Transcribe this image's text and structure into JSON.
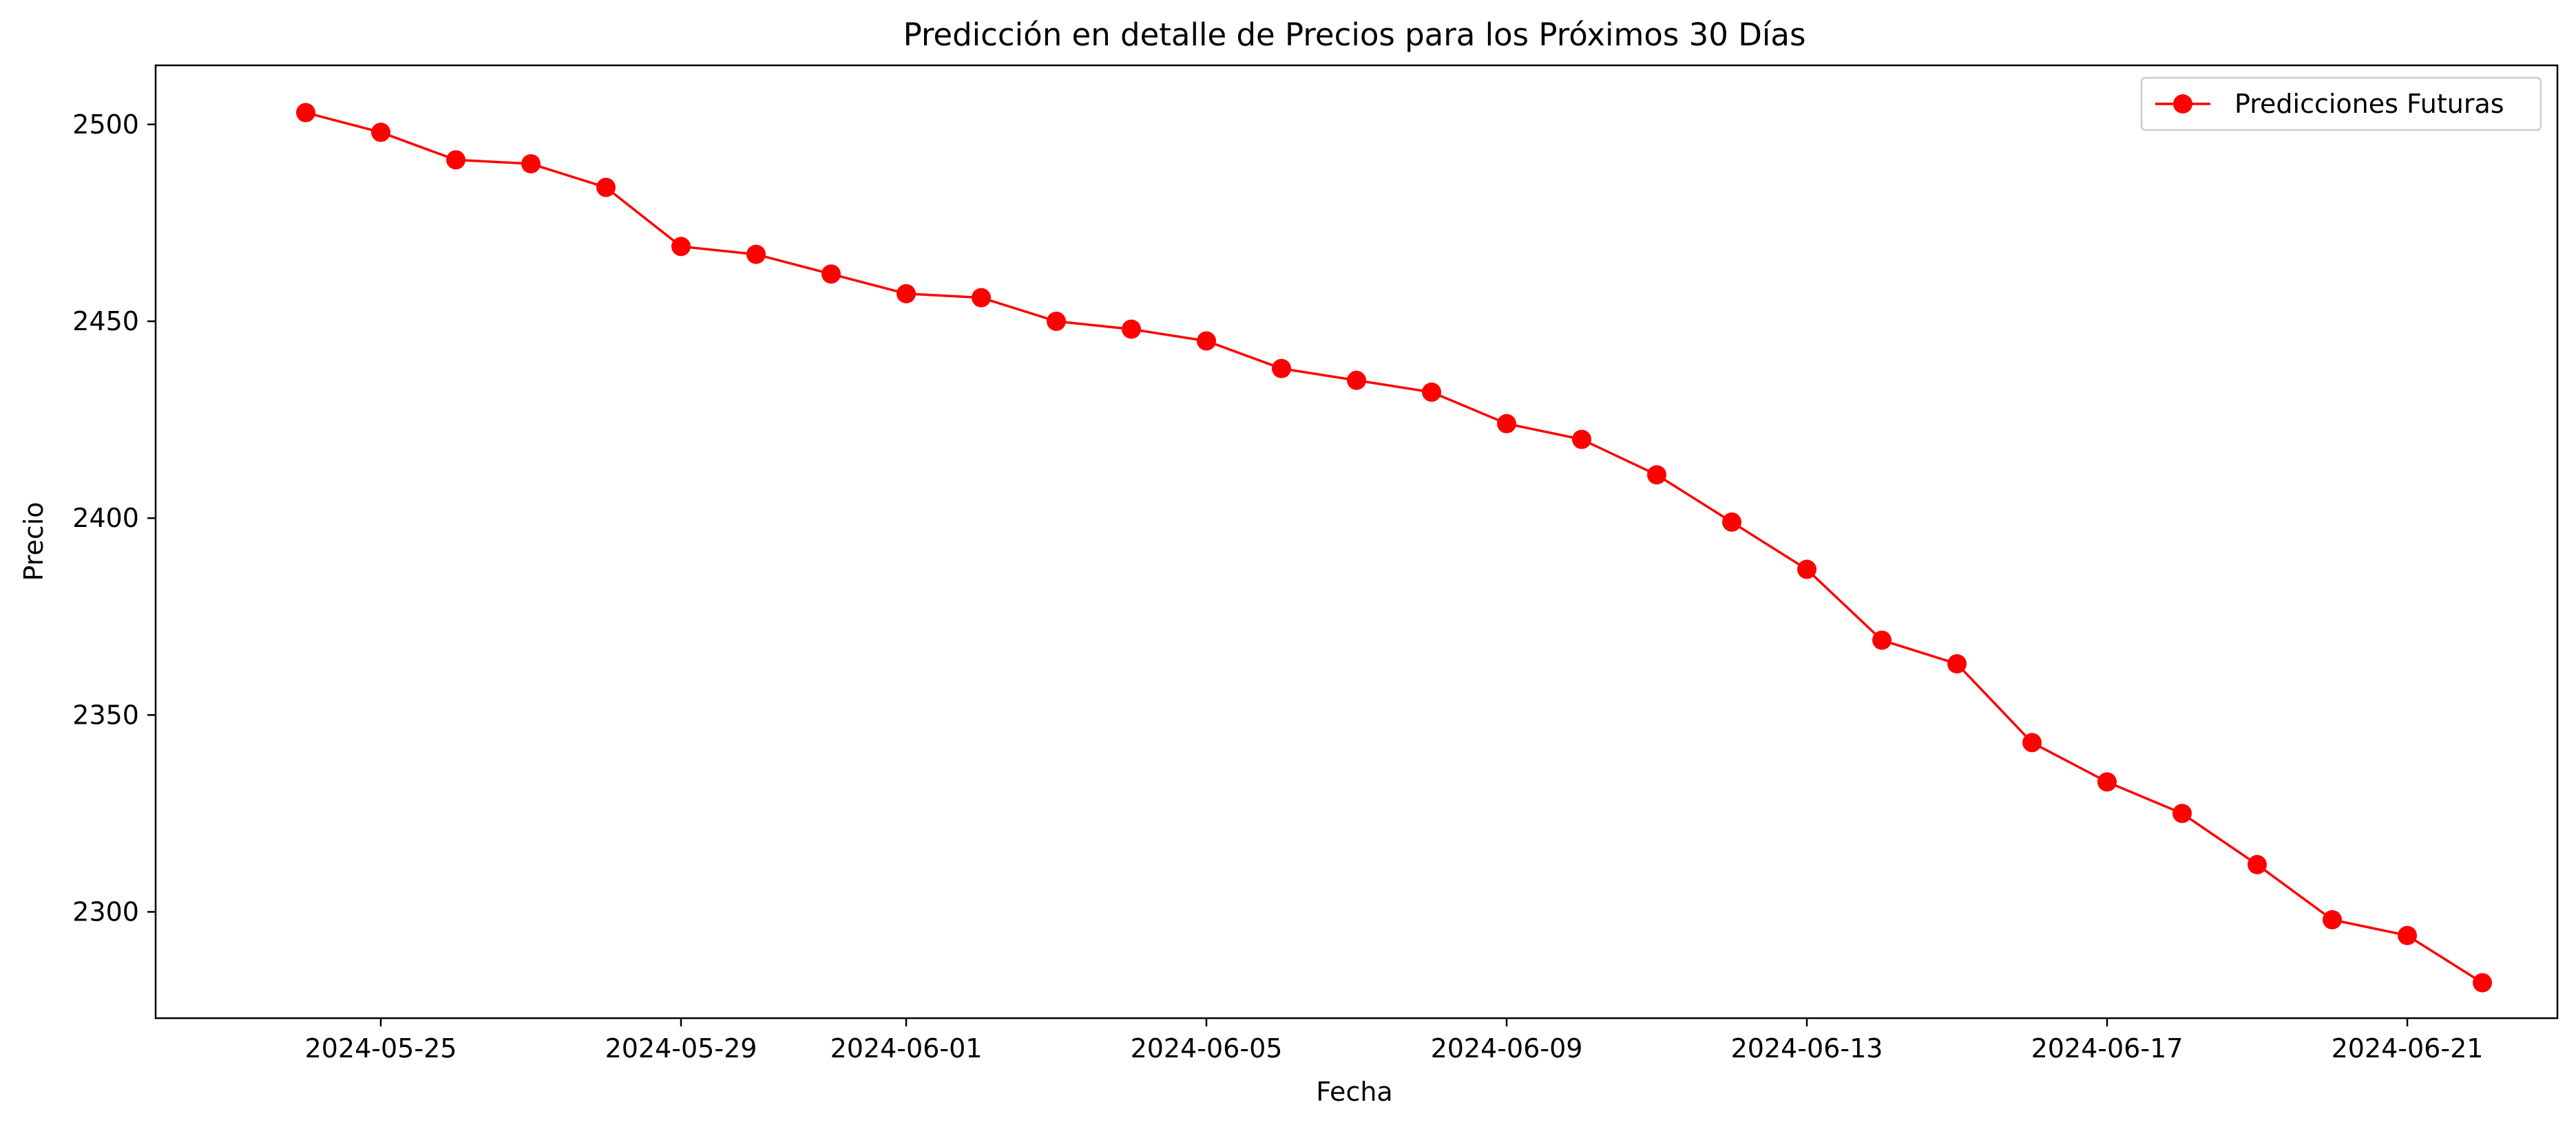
{
  "chart_data": {
    "type": "line",
    "title": "Predicción en detalle de Precios para los Próximos 30 Días",
    "xlabel": "Fecha",
    "ylabel": "Precio",
    "x_ticks": [
      "2024-05-25",
      "2024-05-29",
      "2024-06-01",
      "2024-06-05",
      "2024-06-09",
      "2024-06-13",
      "2024-06-17",
      "2024-06-21"
    ],
    "y_ticks": [
      2300,
      2350,
      2400,
      2450,
      2500
    ],
    "xlim": [
      "2024-05-22",
      "2024-06-23"
    ],
    "ylim": [
      2273,
      2515
    ],
    "grid": false,
    "legend_position": "top-right",
    "series": [
      {
        "name": "Predicciones Futuras",
        "color": "#ff0000",
        "marker": "circle",
        "x": [
          "2024-05-24",
          "2024-05-25",
          "2024-05-26",
          "2024-05-27",
          "2024-05-28",
          "2024-05-29",
          "2024-05-30",
          "2024-05-31",
          "2024-06-01",
          "2024-06-02",
          "2024-06-03",
          "2024-06-04",
          "2024-06-05",
          "2024-06-06",
          "2024-06-07",
          "2024-06-08",
          "2024-06-09",
          "2024-06-10",
          "2024-06-11",
          "2024-06-12",
          "2024-06-13",
          "2024-06-14",
          "2024-06-15",
          "2024-06-16",
          "2024-06-17",
          "2024-06-18",
          "2024-06-19",
          "2024-06-20",
          "2024-06-21",
          "2024-06-22"
        ],
        "values": [
          2503,
          2498,
          2491,
          2490,
          2484,
          2469,
          2467,
          2462,
          2457,
          2456,
          2450,
          2448,
          2445,
          2438,
          2435,
          2432,
          2424,
          2420,
          2411,
          2399,
          2387,
          2369,
          2363,
          2343,
          2333,
          2325,
          2312,
          2298,
          2294,
          2282
        ]
      }
    ]
  }
}
